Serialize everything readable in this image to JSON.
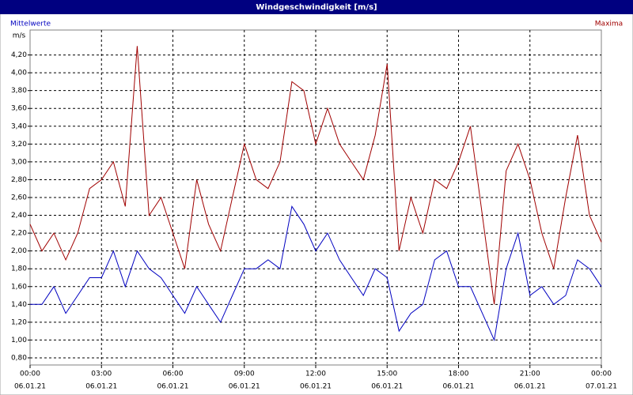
{
  "chart_data": {
    "type": "line",
    "title": "Windgeschwindigkeit [m/s]",
    "y_label": "m/s",
    "x": [
      0,
      0.5,
      1,
      1.5,
      2,
      2.5,
      3,
      3.5,
      4,
      4.5,
      5,
      5.5,
      6,
      6.5,
      7,
      7.5,
      8,
      8.5,
      9,
      9.5,
      10,
      10.5,
      11,
      11.5,
      12,
      12.5,
      13,
      13.5,
      14,
      14.5,
      15,
      15.5,
      16,
      16.5,
      17,
      17.5,
      18,
      18.5,
      19,
      19.5,
      20,
      20.5,
      21,
      21.5,
      22,
      22.5,
      23,
      23.5,
      24
    ],
    "series": [
      {
        "name": "Mittelwerte",
        "color": "#0000c0",
        "values": [
          1.4,
          1.4,
          1.6,
          1.3,
          1.5,
          1.7,
          1.7,
          2.0,
          1.6,
          2.0,
          1.8,
          1.7,
          1.5,
          1.3,
          1.6,
          1.4,
          1.2,
          1.5,
          1.8,
          1.8,
          1.9,
          1.8,
          2.5,
          2.3,
          2.0,
          2.2,
          1.9,
          1.7,
          1.5,
          1.8,
          1.7,
          1.1,
          1.3,
          1.4,
          1.9,
          2.0,
          1.6,
          1.6,
          1.3,
          1.0,
          1.8,
          2.2,
          1.5,
          1.6,
          1.4,
          1.5,
          1.9,
          1.8,
          1.6
        ]
      },
      {
        "name": "Maxima",
        "color": "#a00000",
        "values": [
          2.3,
          2.0,
          2.2,
          1.9,
          2.2,
          2.7,
          2.8,
          3.0,
          2.5,
          4.3,
          2.4,
          2.6,
          2.2,
          1.8,
          2.8,
          2.3,
          2.0,
          2.6,
          3.2,
          2.8,
          2.7,
          3.0,
          3.9,
          3.8,
          3.2,
          3.6,
          3.2,
          3.0,
          2.8,
          3.3,
          4.1,
          2.0,
          2.6,
          2.2,
          2.8,
          2.7,
          3.0,
          3.4,
          2.4,
          1.4,
          2.9,
          3.2,
          2.8,
          2.2,
          1.8,
          2.6,
          3.3,
          2.4,
          2.1
        ]
      }
    ],
    "xlim": [
      0,
      24
    ],
    "ylim": [
      0.72,
      4.48
    ],
    "xticks": [
      {
        "value": 0,
        "label": "00:00",
        "date": "06.01.21"
      },
      {
        "value": 3,
        "label": "03:00",
        "date": "06.01.21"
      },
      {
        "value": 6,
        "label": "06:00",
        "date": "06.01.21"
      },
      {
        "value": 9,
        "label": "09:00",
        "date": "06.01.21"
      },
      {
        "value": 12,
        "label": "12:00",
        "date": "06.01.21"
      },
      {
        "value": 15,
        "label": "15:00",
        "date": "06.01.21"
      },
      {
        "value": 18,
        "label": "18:00",
        "date": "06.01.21"
      },
      {
        "value": 21,
        "label": "21:00",
        "date": "06.01.21"
      },
      {
        "value": 24,
        "label": "00:00",
        "date": "07.01.21"
      }
    ],
    "yticks": [
      {
        "value": 0.8,
        "label": "0,80"
      },
      {
        "value": 1.0,
        "label": "1,00"
      },
      {
        "value": 1.2,
        "label": "1,20"
      },
      {
        "value": 1.4,
        "label": "1,40"
      },
      {
        "value": 1.6,
        "label": "1,60"
      },
      {
        "value": 1.8,
        "label": "1,80"
      },
      {
        "value": 2.0,
        "label": "2,00"
      },
      {
        "value": 2.2,
        "label": "2,20"
      },
      {
        "value": 2.4,
        "label": "2,40"
      },
      {
        "value": 2.6,
        "label": "2,60"
      },
      {
        "value": 2.8,
        "label": "2,80"
      },
      {
        "value": 3.0,
        "label": "3,00"
      },
      {
        "value": 3.2,
        "label": "3,20"
      },
      {
        "value": 3.4,
        "label": "3,40"
      },
      {
        "value": 3.6,
        "label": "3,60"
      },
      {
        "value": 3.8,
        "label": "3,80"
      },
      {
        "value": 4.0,
        "label": "4,00"
      },
      {
        "value": 4.2,
        "label": "4,20"
      }
    ],
    "grid": true
  }
}
